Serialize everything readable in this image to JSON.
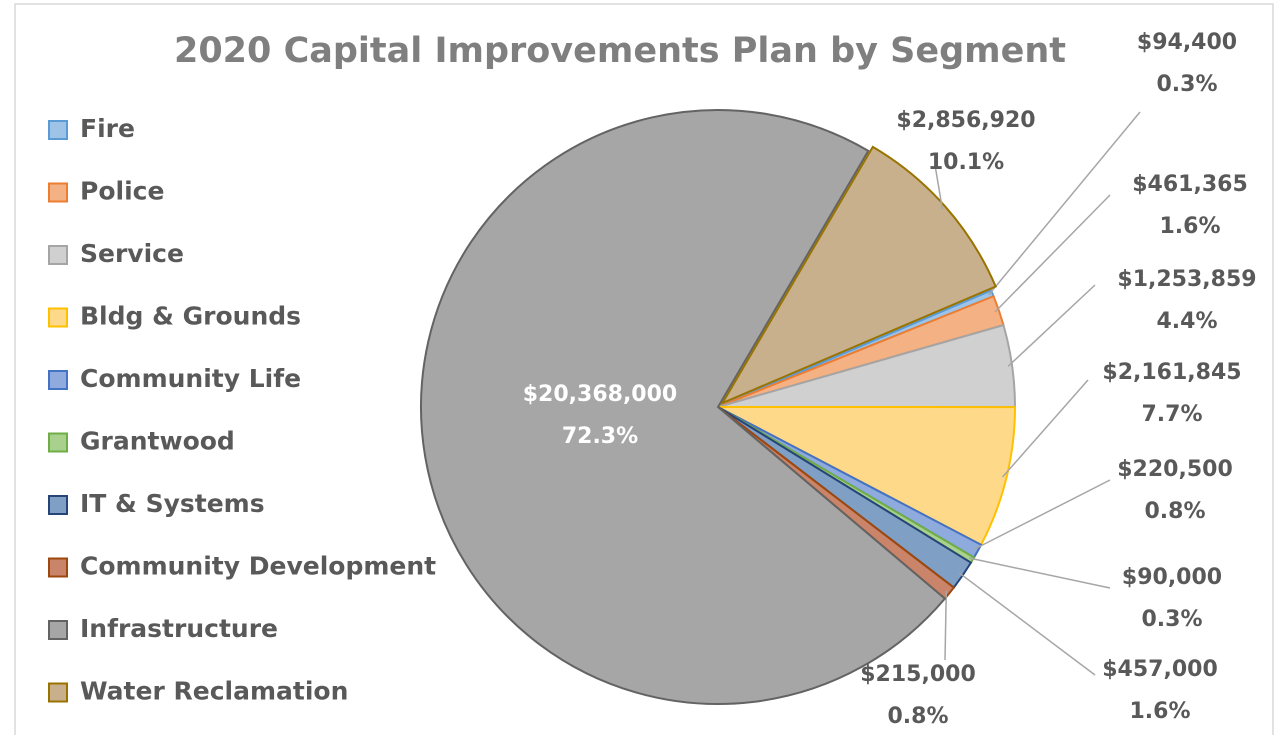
{
  "chart_data": {
    "type": "pie",
    "title": "2020 Capital Improvements Plan by Segment",
    "categories": [
      "Fire",
      "Police",
      "Service",
      "Bldg & Grounds",
      "Community Life",
      "Grantwood",
      "IT & Systems",
      "Community Development",
      "Infrastructure",
      "Water Reclamation"
    ],
    "values": [
      94400,
      461365,
      1253859,
      2161845,
      220500,
      90000,
      457000,
      215000,
      20368000,
      2856920
    ],
    "value_labels": [
      "$94,400",
      "$461,365",
      "$1,253,859",
      "$2,161,845",
      "$220,500",
      "$90,000",
      "$457,000",
      "$215,000",
      "$20,368,000",
      "$2,856,920"
    ],
    "percentages": [
      0.3,
      1.6,
      4.4,
      7.7,
      0.8,
      0.3,
      1.6,
      0.8,
      72.3,
      10.1
    ],
    "percentage_labels": [
      "0.3%",
      "1.6%",
      "4.4%",
      "7.7%",
      "0.8%",
      "0.3%",
      "1.6%",
      "0.8%",
      "72.3%",
      "10.1%"
    ],
    "colors": [
      "#9DC3E6",
      "#F4B183",
      "#D0D0D0",
      "#FFD98A",
      "#8FAADC",
      "#A9D18E",
      "#7F9FC4",
      "#C9846A",
      "#A6A6A6",
      "#C9B08C"
    ],
    "edge_colors": [
      "#5B9BD5",
      "#ED7D31",
      "#A5A5A5",
      "#FFC000",
      "#4472C4",
      "#70AD47",
      "#264478",
      "#9E480E",
      "#636363",
      "#997300"
    ],
    "legend": "left"
  }
}
